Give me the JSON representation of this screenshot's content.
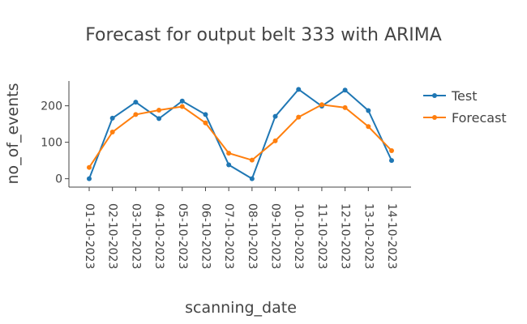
{
  "chart_data": {
    "type": "line",
    "title": "Forecast for output belt 333 with ARIMA",
    "xlabel": "scanning_date",
    "ylabel": "no_of_events",
    "x": [
      "01-10-2023",
      "02-10-2023",
      "03-10-2023",
      "04-10-2023",
      "05-10-2023",
      "06-10-2023",
      "07-10-2023",
      "08-10-2023",
      "09-10-2023",
      "10-10-2023",
      "11-10-2023",
      "12-10-2023",
      "13-10-2023",
      "14-10-2023"
    ],
    "yticks": [
      0,
      100,
      200
    ],
    "ylim": [
      -23,
      268
    ],
    "series": [
      {
        "name": "Test",
        "color": "#1f77b4",
        "values": [
          0,
          166,
          210,
          165,
          213,
          176,
          38,
          0,
          171,
          245,
          199,
          243,
          187,
          50
        ]
      },
      {
        "name": "Forecast",
        "color": "#ff7f0e",
        "values": [
          31,
          128,
          176,
          188,
          198,
          153,
          70,
          51,
          104,
          169,
          203,
          195,
          143,
          77
        ]
      }
    ],
    "legend": "top-right",
    "grid": false
  }
}
